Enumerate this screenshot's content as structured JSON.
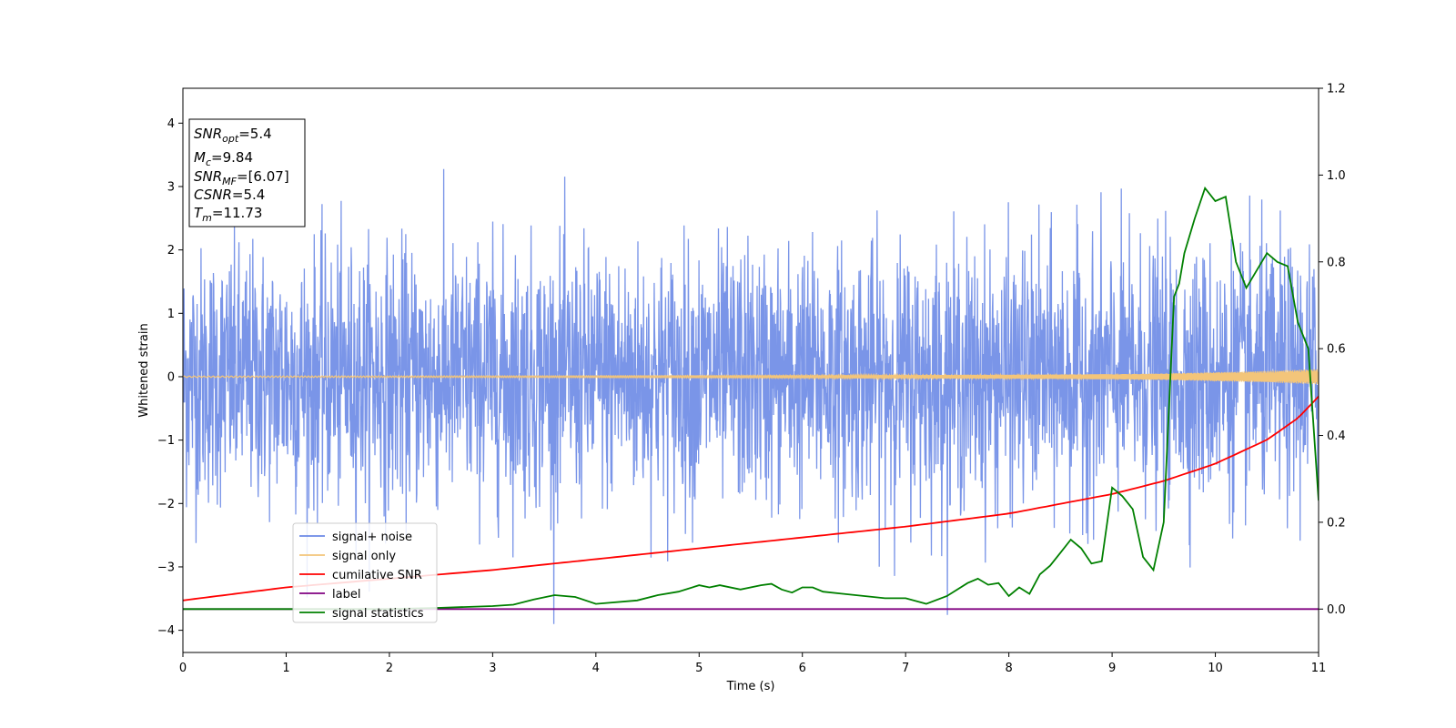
{
  "chart_data": {
    "type": "line",
    "xlabel": "Time (s)",
    "ylabel": "Whitened strain",
    "xlim": [
      0,
      11
    ],
    "ylim": [
      -4.35,
      4.55
    ],
    "y2lim": [
      -0.1,
      1.2
    ],
    "x_ticks": [
      "0",
      "1",
      "2",
      "3",
      "4",
      "5",
      "6",
      "7",
      "8",
      "9",
      "10",
      "11"
    ],
    "y_ticks": [
      "−4",
      "−3",
      "−2",
      "−1",
      "0",
      "1",
      "2",
      "3",
      "4"
    ],
    "y2_ticks": [
      "0.0",
      "0.2",
      "0.4",
      "0.6",
      "0.8",
      "1.0",
      "1.2"
    ],
    "grid": false,
    "legend_position": "lower-left",
    "info_box": {
      "snr_opt": {
        "name": "SNR",
        "sub": "opt",
        "value": "=5.4"
      },
      "mc": {
        "name": "M",
        "sub": "c",
        "value": "=9.84"
      },
      "snr_mf": {
        "name": "SNR",
        "sub": "MF",
        "value": "=[6.07]"
      },
      "csnr": {
        "name": "CSNR",
        "value": "=5.4"
      },
      "tm": {
        "name": "T",
        "sub": "m",
        "value": "=11.73"
      }
    },
    "series": [
      {
        "name": "signal+ noise",
        "color": "#6b8ae6",
        "axis": "left",
        "description_note": "whitened noisy strain, amplitude roughly within ±3.7",
        "envelope": [
          -3.9,
          3.7
        ]
      },
      {
        "name": "signal only",
        "color": "#f3c57a",
        "axis": "left",
        "x": [
          0,
          2,
          4,
          6,
          8,
          9,
          9.5,
          10,
          10.5,
          11
        ],
        "amplitude": [
          0.01,
          0.012,
          0.015,
          0.02,
          0.03,
          0.04,
          0.05,
          0.07,
          0.09,
          0.12
        ]
      },
      {
        "name": "cumilative SNR",
        "color": "#ff0000",
        "axis": "right",
        "x": [
          0,
          1,
          2,
          3,
          4,
          5,
          6,
          7,
          8,
          9,
          9.5,
          10,
          10.5,
          10.8,
          11
        ],
        "y": [
          0.02,
          0.05,
          0.07,
          0.09,
          0.115,
          0.14,
          0.165,
          0.19,
          0.22,
          0.265,
          0.295,
          0.335,
          0.39,
          0.44,
          0.49
        ]
      },
      {
        "name": "label",
        "color": "#800080",
        "axis": "right",
        "x": [
          0,
          11
        ],
        "y": [
          0,
          0
        ]
      },
      {
        "name": "signal statistics",
        "color": "#008000",
        "axis": "right",
        "x": [
          0,
          1,
          2,
          2.5,
          3,
          3.2,
          3.4,
          3.6,
          3.8,
          4,
          4.4,
          4.6,
          4.8,
          5,
          5.1,
          5.2,
          5.4,
          5.6,
          5.7,
          5.8,
          5.9,
          6,
          6.1,
          6.2,
          6.4,
          6.6,
          6.8,
          7,
          7.2,
          7.4,
          7.6,
          7.7,
          7.8,
          7.9,
          8,
          8.1,
          8.2,
          8.3,
          8.4,
          8.5,
          8.6,
          8.7,
          8.8,
          8.9,
          9,
          9.1,
          9.2,
          9.3,
          9.4,
          9.5,
          9.6,
          9.65,
          9.7,
          9.8,
          9.9,
          10.0,
          10.1,
          10.2,
          10.3,
          10.4,
          10.5,
          10.6,
          10.7,
          10.8,
          10.9,
          11
        ],
        "y": [
          0.0,
          0.0,
          0.0,
          0.003,
          0.007,
          0.01,
          0.022,
          0.032,
          0.028,
          0.012,
          0.02,
          0.032,
          0.04,
          0.055,
          0.05,
          0.055,
          0.045,
          0.055,
          0.058,
          0.045,
          0.038,
          0.05,
          0.05,
          0.04,
          0.035,
          0.03,
          0.025,
          0.025,
          0.012,
          0.03,
          0.06,
          0.07,
          0.056,
          0.06,
          0.03,
          0.05,
          0.035,
          0.08,
          0.1,
          0.13,
          0.16,
          0.14,
          0.105,
          0.11,
          0.28,
          0.26,
          0.23,
          0.12,
          0.09,
          0.2,
          0.72,
          0.75,
          0.82,
          0.9,
          0.97,
          0.94,
          0.95,
          0.8,
          0.74,
          0.78,
          0.82,
          0.8,
          0.79,
          0.66,
          0.6,
          0.25
        ]
      }
    ]
  }
}
